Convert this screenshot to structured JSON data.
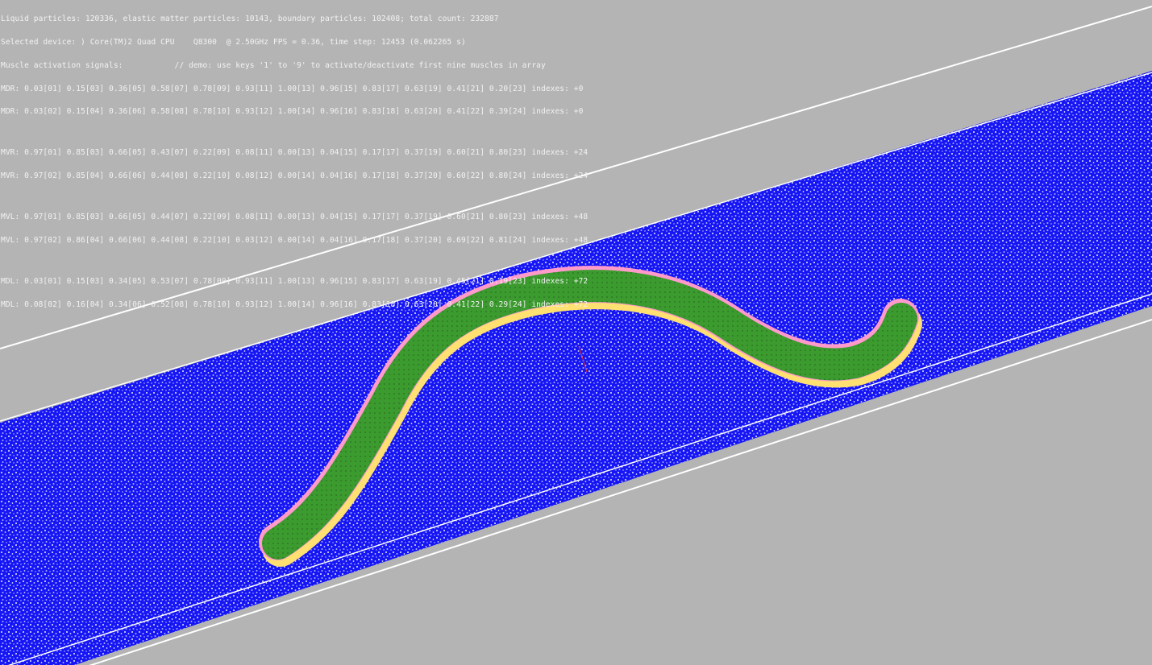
{
  "hud": {
    "particles_line": "Liquid particles: 120336, elastic matter particles: 10143, boundary particles: 102408; total count: 232887",
    "device_line": "Selected device: ) Core(TM)2 Quad CPU    Q8300  @ 2.50GHz FPS = 0.36, time step: 12453 (0.062265 s)",
    "signals_line": "Muscle activation signals:           // demo: use keys '1' to '9' to activate/deactivate first nine muscles in array",
    "muscle_rows": [
      "MDR: 0.03[01] 0.15[03] 0.36[05] 0.58[07] 0.78[09] 0.93[11] 1.00[13] 0.96[15] 0.83[17] 0.63[19] 0.41[21] 0.20[23] indexes: +0",
      "MDR: 0.03[02] 0.15[04] 0.36[06] 0.58[08] 0.78[10] 0.93[12] 1.00[14] 0.96[16] 0.83[18] 0.63[20] 0.41[22] 0.39[24] indexes: +0",
      "MVR: 0.97[01] 0.85[03] 0.66[05] 0.43[07] 0.22[09] 0.08[11] 0.00[13] 0.04[15] 0.17[17] 0.37[19] 0.60[21] 0.80[23] indexes: +24",
      "MVR: 0.97[02] 0.85[04] 0.66[06] 0.44[08] 0.22[10] 0.08[12] 0.00[14] 0.04[16] 0.17[18] 0.37[20] 0.60[22] 0.80[24] indexes: +24",
      "MVL: 0.97[01] 0.85[03] 0.66[05] 0.44[07] 0.22[09] 0.08[11] 0.00[13] 0.04[15] 0.17[17] 0.37[19] 0.60[21] 0.80[23] indexes: +48",
      "MVL: 0.97[02] 0.86[04] 0.66[06] 0.44[08] 0.22[10] 0.03[12] 0.00[14] 0.04[16] 0.17[18] 0.37[20] 0.69[22] 0.81[24] indexes: +48",
      "MDL: 0.03[01] 0.15[03] 0.34[05] 0.53[07] 0.78[09] 0.93[11] 1.00[13] 0.96[15] 0.83[17] 0.63[19] 0.45[21] 0.19[23] indexes: +72",
      "MDL: 0.08[02] 0.16[04] 0.34[06] 0.52[08] 0.78[10] 0.93[12] 1.00[14] 0.96[16] 0.83[18] 0.63[20] 0.41[22] 0.29[24] indexes: +72"
    ]
  },
  "colors": {
    "background": "#b4b4b4",
    "liquid": "#1a1aff",
    "elastic_body": "#3a9a2e",
    "boundary_lines": "#ffffff",
    "muscle_highlight": "#ff9acb"
  }
}
